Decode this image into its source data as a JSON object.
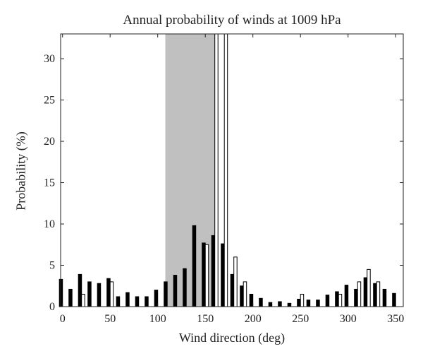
{
  "chart_data": {
    "type": "bar",
    "title": "Annual probability of winds at 1009 hPa",
    "xlabel": "Wind direction (deg)",
    "ylabel": "Probability (%)",
    "xlim": [
      -2,
      358
    ],
    "ylim": [
      0,
      33
    ],
    "xticks": [
      0,
      50,
      100,
      150,
      200,
      250,
      300,
      350
    ],
    "yticks": [
      0,
      5,
      10,
      15,
      20,
      25,
      30
    ],
    "grid": false,
    "legend": "none",
    "shaded_region": {
      "x": [
        108,
        162
      ],
      "color": "#c0c0c0"
    },
    "categories": [
      0,
      10,
      20,
      30,
      40,
      50,
      60,
      70,
      80,
      90,
      100,
      110,
      120,
      130,
      140,
      150,
      160,
      170,
      180,
      190,
      200,
      210,
      220,
      230,
      240,
      250,
      260,
      270,
      280,
      290,
      300,
      310,
      320,
      330,
      340,
      350
    ],
    "series": [
      {
        "style": "filled",
        "color": "#000000",
        "values": [
          3.3,
          2.1,
          3.9,
          3.0,
          2.8,
          3.4,
          1.2,
          1.7,
          1.2,
          1.2,
          2.0,
          3.0,
          3.8,
          4.6,
          9.8,
          7.7,
          8.6,
          7.6,
          3.9,
          2.5,
          1.5,
          1.0,
          0.5,
          0.6,
          0.4,
          0.9,
          0.8,
          0.8,
          1.4,
          1.8,
          2.6,
          2.1,
          3.5,
          2.8,
          2.1,
          1.6
        ]
      },
      {
        "style": "open",
        "color": "#ffffff",
        "values": [
          0,
          0,
          1.5,
          0,
          0,
          3.0,
          0,
          0,
          0,
          0,
          0,
          0,
          0,
          0,
          0,
          7.5,
          33,
          33,
          6.0,
          3.0,
          0,
          0,
          0,
          0,
          0,
          1.5,
          0,
          0,
          0,
          1.5,
          0,
          3.0,
          4.5,
          3.0,
          0,
          0
        ]
      }
    ]
  }
}
